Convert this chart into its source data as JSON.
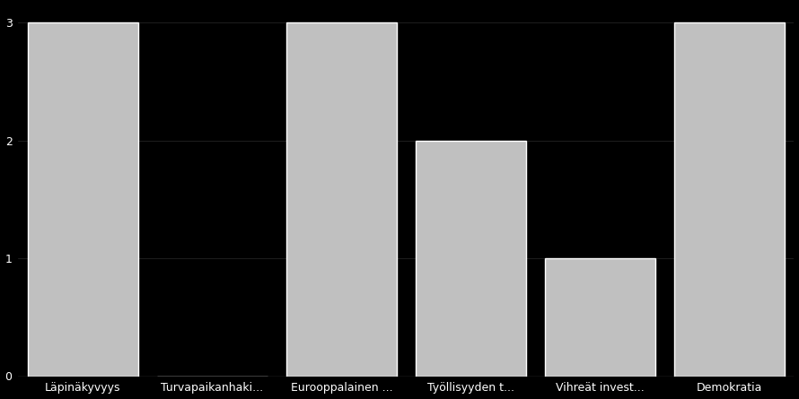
{
  "categories": [
    "Läpinäkyvyys",
    "Turvapaikanhaki...",
    "Eurooppalainen ...",
    "Työllisyyden t...",
    "Vihreät invest...",
    "Demokratia"
  ],
  "values": [
    3.0,
    0.0,
    3.0,
    2.0,
    1.0,
    3.0
  ],
  "bar_color": "#c0c0c0",
  "bar_edge_color": "#ffffff",
  "bar_edge_width": 1.0,
  "background_color": "#000000",
  "text_color": "#ffffff",
  "grid_color": "#2a2a2a",
  "ylim": [
    0,
    3.15
  ],
  "yticks": [
    0,
    1,
    2,
    3
  ],
  "bar_width": 0.85,
  "figsize": [
    8.9,
    4.45
  ],
  "dpi": 100,
  "tick_fontsize": 9
}
